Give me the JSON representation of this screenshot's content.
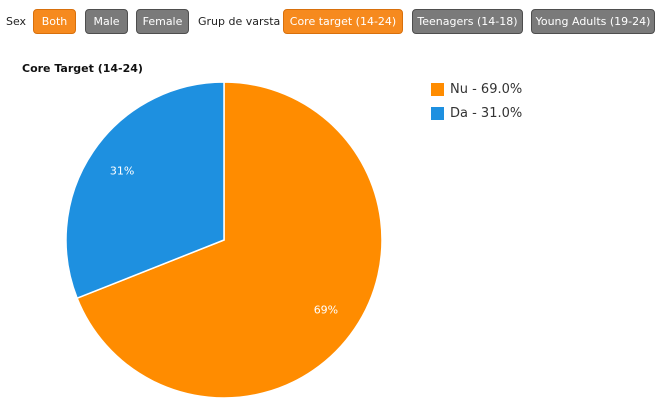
{
  "filters": {
    "sex_label": "Sex",
    "sex_options": [
      {
        "label": "Both",
        "active": true
      },
      {
        "label": "Male",
        "active": false
      },
      {
        "label": "Female",
        "active": false
      }
    ],
    "age_label": "Grup de varsta",
    "age_options": [
      {
        "label": "Core target (14-24)",
        "active": true
      },
      {
        "label": "Teenagers (14-18)",
        "active": false
      },
      {
        "label": "Young Adults (19-24)",
        "active": false
      }
    ]
  },
  "chart_data": {
    "type": "pie",
    "title": "Core Target (14-24)",
    "slices": [
      {
        "label": "Nu",
        "value": 69.0,
        "color": "#ff8c00",
        "legend": "Nu - 69.0%",
        "data_label": "69%"
      },
      {
        "label": "Da",
        "value": 31.0,
        "color": "#1e90e0",
        "legend": "Da - 31.0%",
        "data_label": "31%"
      }
    ],
    "legend_position": "top-right"
  }
}
